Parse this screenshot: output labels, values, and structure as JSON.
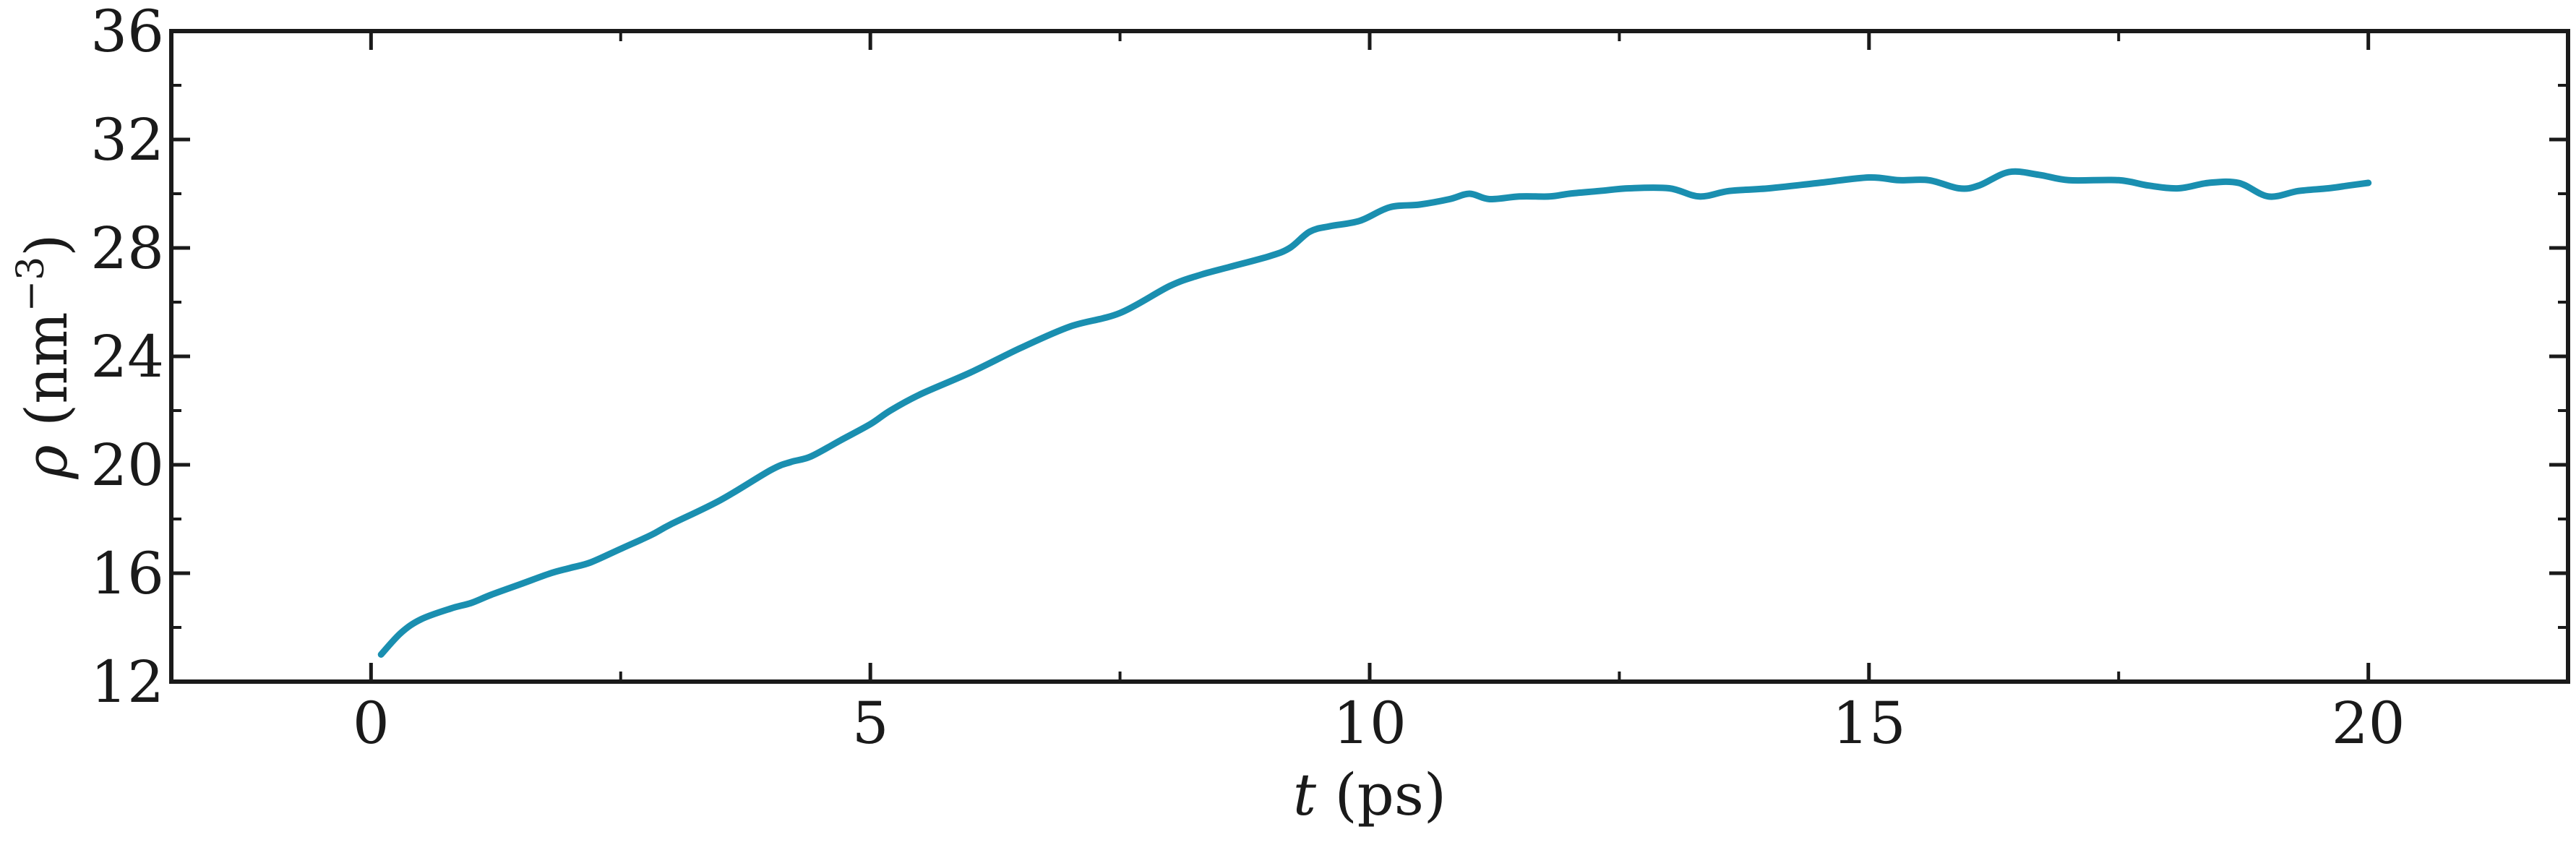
{
  "chart_data": {
    "type": "line",
    "xlabel_var": "t",
    "xlabel_unit": " (ps)",
    "ylabel_var": "ρ",
    "ylabel_unit_pre": " (nm",
    "ylabel_unit_sup": "−3",
    "ylabel_unit_post": ")",
    "xlim": [
      -2,
      22
    ],
    "ylim": [
      12,
      36
    ],
    "x_ticks": [
      0,
      5,
      10,
      15,
      20
    ],
    "x_tick_labels": [
      "0",
      "5",
      "10",
      "15",
      "20"
    ],
    "y_ticks": [
      12,
      16,
      20,
      24,
      28,
      32,
      36
    ],
    "y_tick_labels": [
      "12",
      "16",
      "20",
      "24",
      "28",
      "32",
      "36"
    ],
    "grid": false,
    "legend": "none",
    "colors": {
      "line": "#1a8fb0",
      "axes": "#1a1a1a"
    },
    "series": [
      {
        "x": [
          0.1,
          0.3,
          0.5,
          0.8,
          1.0,
          1.2,
          1.5,
          1.8,
          2.0,
          2.2,
          2.5,
          2.8,
          3.0,
          3.5,
          4.0,
          4.2,
          4.4,
          4.7,
          5.0,
          5.2,
          5.5,
          6.0,
          6.5,
          7.0,
          7.5,
          8.0,
          8.3,
          8.6,
          9.0,
          9.2,
          9.4,
          9.6,
          9.9,
          10.2,
          10.5,
          10.8,
          11.0,
          11.2,
          11.5,
          11.8,
          12.0,
          12.3,
          12.6,
          13.0,
          13.3,
          13.6,
          14.0,
          14.5,
          15.0,
          15.3,
          15.6,
          15.9,
          16.1,
          16.4,
          16.7,
          17.0,
          17.5,
          17.8,
          18.1,
          18.4,
          18.7,
          19.0,
          19.3,
          19.6,
          19.8,
          20.0
        ],
        "y": [
          13.0,
          13.8,
          14.3,
          14.7,
          14.9,
          15.2,
          15.6,
          16.0,
          16.2,
          16.4,
          16.9,
          17.4,
          17.8,
          18.7,
          19.8,
          20.1,
          20.3,
          20.9,
          21.5,
          22.0,
          22.6,
          23.4,
          24.3,
          25.1,
          25.6,
          26.6,
          27.0,
          27.3,
          27.7,
          28.0,
          28.6,
          28.8,
          29.0,
          29.5,
          29.6,
          29.8,
          30.0,
          29.8,
          29.9,
          29.9,
          30.0,
          30.1,
          30.2,
          30.2,
          29.9,
          30.1,
          30.2,
          30.4,
          30.6,
          30.5,
          30.5,
          30.2,
          30.3,
          30.8,
          30.7,
          30.5,
          30.5,
          30.3,
          30.2,
          30.4,
          30.4,
          29.9,
          30.1,
          30.2,
          30.3,
          30.4
        ]
      }
    ]
  }
}
